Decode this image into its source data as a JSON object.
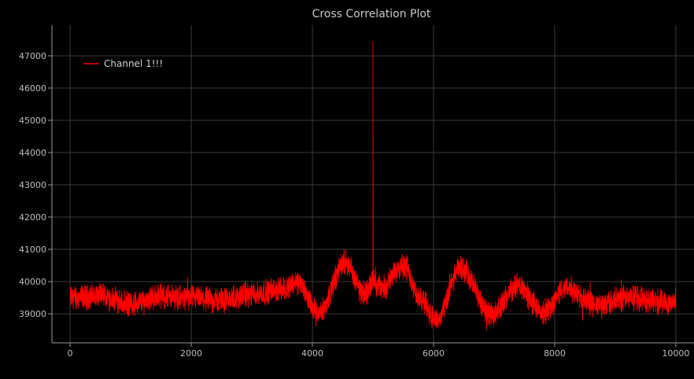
{
  "chart_data": {
    "type": "line",
    "title": "Cross Correlation Plot",
    "xlabel": "",
    "ylabel": "",
    "xlim": [
      -300,
      10300
    ],
    "ylim": [
      38100,
      47950
    ],
    "x_ticks": [
      0,
      2000,
      4000,
      6000,
      8000,
      10000
    ],
    "y_ticks": [
      39000,
      40000,
      41000,
      42000,
      43000,
      44000,
      45000,
      46000,
      47000
    ],
    "x_tick_labels": [
      "0",
      "2000",
      "4000",
      "6000",
      "8000",
      "10000"
    ],
    "y_tick_labels": [
      "39000",
      "40000",
      "41000",
      "42000",
      "43000",
      "44000",
      "45000",
      "46000",
      "47000"
    ],
    "grid": true,
    "legend_position": "top-left",
    "background_color": "#000000",
    "grid_color": "#3a3a3a",
    "axis_color": "#9a9a9a",
    "series": [
      {
        "name": "Channel 1!!!",
        "color": "#ff0000",
        "x_range": [
          0,
          10000
        ],
        "envelope": [
          {
            "x": 0,
            "y": 39500
          },
          {
            "x": 500,
            "y": 39550
          },
          {
            "x": 1000,
            "y": 39300
          },
          {
            "x": 1500,
            "y": 39550
          },
          {
            "x": 2000,
            "y": 39480
          },
          {
            "x": 2500,
            "y": 39420
          },
          {
            "x": 3000,
            "y": 39600
          },
          {
            "x": 3500,
            "y": 39750
          },
          {
            "x": 3750,
            "y": 40000
          },
          {
            "x": 4100,
            "y": 39000
          },
          {
            "x": 4550,
            "y": 40600
          },
          {
            "x": 4850,
            "y": 39600
          },
          {
            "x": 5000,
            "y": 40000
          },
          {
            "x": 5150,
            "y": 39800
          },
          {
            "x": 5500,
            "y": 40550
          },
          {
            "x": 5800,
            "y": 39400
          },
          {
            "x": 6050,
            "y": 38800
          },
          {
            "x": 6450,
            "y": 40400
          },
          {
            "x": 6950,
            "y": 39000
          },
          {
            "x": 7400,
            "y": 39850
          },
          {
            "x": 7800,
            "y": 39050
          },
          {
            "x": 8200,
            "y": 39800
          },
          {
            "x": 8700,
            "y": 39250
          },
          {
            "x": 9200,
            "y": 39500
          },
          {
            "x": 10000,
            "y": 39350
          }
        ],
        "noise_amplitude": 280,
        "peak": {
          "x": 5000,
          "y": 47450
        }
      }
    ]
  }
}
